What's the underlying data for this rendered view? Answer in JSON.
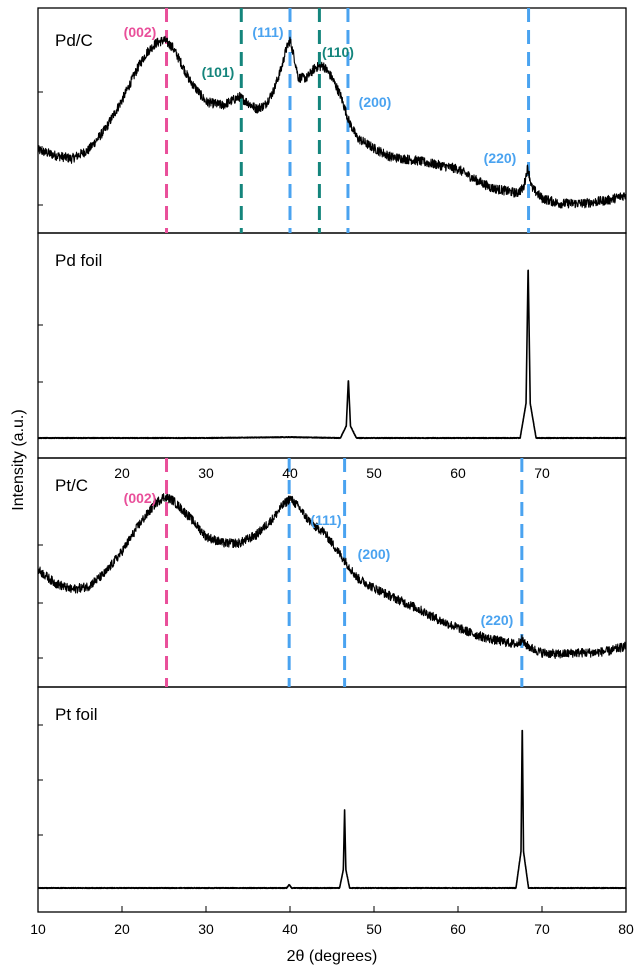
{
  "chart_data": {
    "type": "line",
    "xlabel": "2θ (degrees)",
    "ylabel": "Intensity (a.u.)",
    "xlim": [
      10,
      80
    ],
    "xticks": [
      10,
      20,
      30,
      40,
      50,
      60,
      70,
      80
    ],
    "xtick_labels": [
      "10",
      "20",
      "30",
      "40",
      "50",
      "60",
      "70",
      "80"
    ],
    "grid": false,
    "colors": {
      "trace": "#000000",
      "carbon_002": "#e94f9a",
      "carbon_hex": "#14857c",
      "metal_fcc": "#4aa3f0",
      "mid_tick_labels": "#d0d0d0"
    },
    "panels": [
      {
        "label": "Pd/C",
        "series": [
          {
            "x": [
              10,
              12,
              14,
              16,
              18,
              20,
              22,
              23,
              24,
              25,
              26,
              27,
              28,
              30,
              32,
              34,
              36,
              37,
              38,
              39,
              39.5,
              40,
              40.5,
              41,
              42,
              43,
              44,
              45,
              46,
              47,
              48,
              50,
              52,
              55,
              58,
              60,
              62,
              64,
              66,
              67,
              67.8,
              68.3,
              68.8,
              70,
              72,
              75,
              78,
              80
            ],
            "y": [
              0.36,
              0.33,
              0.31,
              0.36,
              0.48,
              0.65,
              0.85,
              0.93,
              0.98,
              1.0,
              0.96,
              0.87,
              0.77,
              0.64,
              0.62,
              0.67,
              0.6,
              0.62,
              0.7,
              0.84,
              0.94,
              1.0,
              0.9,
              0.78,
              0.78,
              0.84,
              0.85,
              0.78,
              0.68,
              0.53,
              0.43,
              0.37,
              0.32,
              0.3,
              0.27,
              0.25,
              0.19,
              0.14,
              0.12,
              0.11,
              0.14,
              0.26,
              0.14,
              0.08,
              0.05,
              0.05,
              0.07,
              0.1
            ]
          }
        ],
        "reflections": [
          {
            "label": "(002)",
            "x": 25.3,
            "family": "carbon_002"
          },
          {
            "label": "(101)",
            "x": 34.2,
            "family": "carbon_hex"
          },
          {
            "label": "(111)",
            "x": 40.0,
            "family": "metal_fcc"
          },
          {
            "label": "(110)",
            "x": 43.5,
            "family": "carbon_hex"
          },
          {
            "label": "(200)",
            "x": 46.9,
            "family": "metal_fcc"
          },
          {
            "label": "(220)",
            "x": 68.4,
            "family": "metal_fcc"
          }
        ]
      },
      {
        "label": "Pd foil",
        "series": [
          {
            "x": [
              10,
              20,
              30,
              40,
              46.0,
              46.7,
              46.95,
              47.2,
              47.9,
              60,
              67.4,
              68.1,
              68.35,
              68.6,
              69.3,
              80
            ],
            "y": [
              0.0,
              0.0,
              0.0,
              0.005,
              0.0,
              0.07,
              0.34,
              0.07,
              0.0,
              0.0,
              0.0,
              0.2,
              1.0,
              0.2,
              0.0,
              0.0
            ]
          }
        ],
        "reflections": [],
        "tick_labels": [
          "20",
          "30",
          "40",
          "50",
          "60",
          "70"
        ]
      },
      {
        "label": "Pt/C",
        "series": [
          {
            "x": [
              10,
              12,
              14,
              16,
              18,
              20,
              22,
              24,
              25,
              26,
              28,
              30,
              32,
              34,
              36,
              38,
              39,
              40,
              41,
              42,
              43,
              44,
              45,
              46,
              47,
              48,
              50,
              52,
              55,
              58,
              60,
              62,
              64,
              66,
              67,
              67.6,
              68,
              69,
              70,
              72,
              74,
              76,
              78,
              80
            ],
            "y": [
              0.55,
              0.47,
              0.43,
              0.45,
              0.53,
              0.66,
              0.82,
              0.95,
              0.99,
              0.97,
              0.87,
              0.75,
              0.71,
              0.71,
              0.76,
              0.86,
              0.93,
              0.98,
              0.93,
              0.86,
              0.81,
              0.78,
              0.71,
              0.64,
              0.57,
              0.5,
              0.44,
              0.39,
              0.32,
              0.24,
              0.2,
              0.16,
              0.13,
              0.11,
              0.1,
              0.13,
              0.1,
              0.07,
              0.05,
              0.04,
              0.05,
              0.05,
              0.06,
              0.09
            ]
          }
        ],
        "reflections": [
          {
            "label": "(002)",
            "x": 25.3,
            "family": "carbon_002"
          },
          {
            "label": "(111)",
            "x": 39.9,
            "family": "metal_fcc"
          },
          {
            "label": "(200)",
            "x": 46.5,
            "family": "metal_fcc"
          },
          {
            "label": "(220)",
            "x": 67.6,
            "family": "metal_fcc"
          }
        ]
      },
      {
        "label": "Pt foil",
        "series": [
          {
            "x": [
              10,
              20,
              30,
              39.6,
              39.9,
              40.2,
              45.9,
              46.35,
              46.5,
              46.65,
              47.1,
              60,
              66.9,
              67.5,
              67.65,
              67.8,
              68.4,
              80
            ],
            "y": [
              0.0,
              0.0,
              0.0,
              0.0,
              0.02,
              0.0,
              0.0,
              0.11,
              0.47,
              0.11,
              0.0,
              0.0,
              0.0,
              0.22,
              1.0,
              0.22,
              0.0,
              0.0
            ]
          }
        ],
        "reflections": []
      }
    ]
  }
}
